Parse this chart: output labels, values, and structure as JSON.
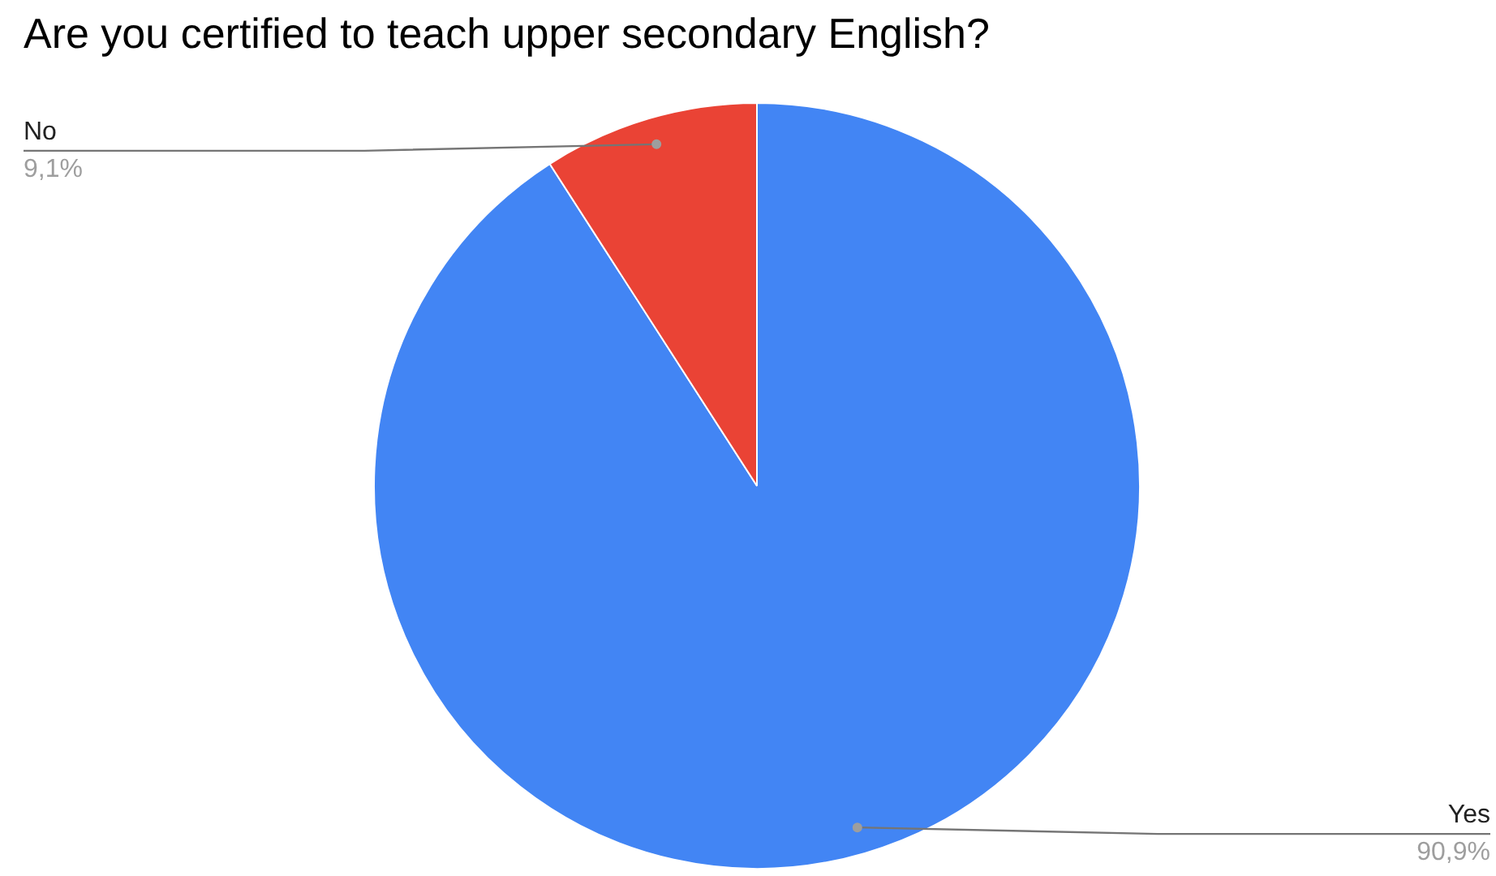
{
  "chart_data": {
    "type": "pie",
    "title": "Are you certified to teach upper secondary English?",
    "categories": [
      "Yes",
      "No"
    ],
    "values": [
      90.9,
      9.1
    ],
    "colors": [
      "#4285f4",
      "#ea4335"
    ],
    "value_labels": [
      "90,9%",
      "9,1%"
    ]
  }
}
